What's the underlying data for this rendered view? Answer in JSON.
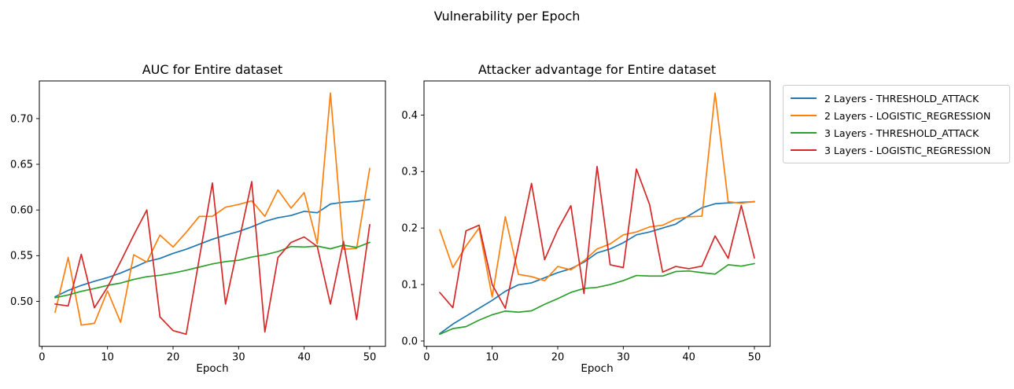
{
  "figure": {
    "suptitle": "Vulnerability per Epoch"
  },
  "legend": {
    "items": [
      {
        "label": "2 Layers - THRESHOLD_ATTACK",
        "color": "#1f77b4"
      },
      {
        "label": "2 Layers - LOGISTIC_REGRESSION",
        "color": "#ff7f0e"
      },
      {
        "label": "3 Layers - THRESHOLD_ATTACK",
        "color": "#2ca02c"
      },
      {
        "label": "3 Layers - LOGISTIC_REGRESSION",
        "color": "#d62728"
      }
    ]
  },
  "chart_data": [
    {
      "id": "auc",
      "type": "line",
      "title": "AUC for Entire dataset",
      "xlabel": "Epoch",
      "legend_position": "outside-right",
      "grid": false,
      "x": [
        2,
        4,
        6,
        8,
        10,
        12,
        14,
        16,
        18,
        20,
        22,
        24,
        26,
        28,
        30,
        32,
        34,
        36,
        38,
        40,
        42,
        44,
        46,
        48,
        50
      ],
      "xlim": [
        -0.4,
        52.4
      ],
      "ylim": [
        0.4508,
        0.7412
      ],
      "xticks": [
        0,
        10,
        20,
        30,
        40,
        50
      ],
      "xtick_labels": [
        "0",
        "10",
        "20",
        "30",
        "40",
        "50"
      ],
      "yticks": [
        0.5,
        0.55,
        0.6,
        0.65,
        0.7
      ],
      "ytick_labels": [
        "0.50",
        "0.55",
        "0.60",
        "0.65",
        "0.70"
      ],
      "series": [
        {
          "name": "2 Layers - THRESHOLD_ATTACK",
          "color": "#1f77b4",
          "values": [
            0.505,
            0.512,
            0.5175,
            0.522,
            0.526,
            0.531,
            0.537,
            0.5435,
            0.547,
            0.5525,
            0.557,
            0.5625,
            0.568,
            0.5725,
            0.5765,
            0.5815,
            0.5875,
            0.5915,
            0.594,
            0.5985,
            0.597,
            0.6065,
            0.6085,
            0.6095,
            0.6115
          ]
        },
        {
          "name": "2 Layers - LOGISTIC_REGRESSION",
          "color": "#ff7f0e",
          "values": [
            0.488,
            0.548,
            0.474,
            0.476,
            0.5115,
            0.477,
            0.551,
            0.543,
            0.5725,
            0.5595,
            0.5755,
            0.593,
            0.593,
            0.603,
            0.606,
            0.61,
            0.593,
            0.622,
            0.602,
            0.619,
            0.563,
            0.728,
            0.557,
            0.558,
            0.6455
          ]
        },
        {
          "name": "3 Layers - THRESHOLD_ATTACK",
          "color": "#2ca02c",
          "values": [
            0.504,
            0.507,
            0.511,
            0.514,
            0.5175,
            0.52,
            0.524,
            0.527,
            0.5285,
            0.531,
            0.534,
            0.5375,
            0.541,
            0.5435,
            0.545,
            0.5485,
            0.551,
            0.5545,
            0.56,
            0.5595,
            0.5605,
            0.5575,
            0.5615,
            0.559,
            0.5645
          ]
        },
        {
          "name": "3 Layers - LOGISTIC_REGRESSION",
          "color": "#d62728",
          "values": [
            0.497,
            0.495,
            0.5515,
            0.493,
            0.5155,
            0.5435,
            0.5725,
            0.6,
            0.483,
            0.468,
            0.464,
            0.547,
            0.6295,
            0.497,
            0.564,
            0.631,
            0.4665,
            0.548,
            0.5645,
            0.5705,
            0.56,
            0.497,
            0.5655,
            0.48,
            0.584
          ]
        }
      ]
    },
    {
      "id": "advantage",
      "type": "line",
      "title": "Attacker advantage for Entire dataset",
      "xlabel": "Epoch",
      "grid": false,
      "x": [
        2,
        4,
        6,
        8,
        10,
        12,
        14,
        16,
        18,
        20,
        22,
        24,
        26,
        28,
        30,
        32,
        34,
        36,
        38,
        40,
        42,
        44,
        46,
        48,
        50
      ],
      "xlim": [
        -0.4,
        52.4
      ],
      "ylim": [
        -0.0094,
        0.4604
      ],
      "xticks": [
        0,
        10,
        20,
        30,
        40,
        50
      ],
      "xtick_labels": [
        "0",
        "10",
        "20",
        "30",
        "40",
        "50"
      ],
      "yticks": [
        0.0,
        0.1,
        0.2,
        0.3,
        0.4
      ],
      "ytick_labels": [
        "0.0",
        "0.1",
        "0.2",
        "0.3",
        "0.4"
      ],
      "series": [
        {
          "name": "2 Layers - THRESHOLD_ATTACK",
          "color": "#1f77b4",
          "values": [
            0.013,
            0.03,
            0.044,
            0.058,
            0.072,
            0.088,
            0.0995,
            0.103,
            0.112,
            0.121,
            0.128,
            0.1395,
            0.156,
            0.163,
            0.174,
            0.188,
            0.193,
            0.2,
            0.207,
            0.222,
            0.236,
            0.243,
            0.2445,
            0.2455,
            0.2465
          ]
        },
        {
          "name": "2 Layers - LOGISTIC_REGRESSION",
          "color": "#ff7f0e",
          "values": [
            0.197,
            0.13,
            0.168,
            0.2,
            0.078,
            0.22,
            0.118,
            0.114,
            0.107,
            0.132,
            0.126,
            0.142,
            0.163,
            0.172,
            0.188,
            0.193,
            0.202,
            0.205,
            0.216,
            0.22,
            0.221,
            0.439,
            0.2465,
            0.244,
            0.247
          ]
        },
        {
          "name": "3 Layers - THRESHOLD_ATTACK",
          "color": "#2ca02c",
          "values": [
            0.012,
            0.022,
            0.0255,
            0.037,
            0.0465,
            0.053,
            0.051,
            0.0535,
            0.065,
            0.075,
            0.086,
            0.093,
            0.095,
            0.1,
            0.107,
            0.116,
            0.115,
            0.115,
            0.123,
            0.124,
            0.121,
            0.1185,
            0.135,
            0.1325,
            0.137
          ]
        },
        {
          "name": "3 Layers - LOGISTIC_REGRESSION",
          "color": "#d62728",
          "values": [
            0.086,
            0.059,
            0.195,
            0.205,
            0.1,
            0.058,
            0.168,
            0.279,
            0.144,
            0.197,
            0.2395,
            0.084,
            0.309,
            0.135,
            0.13,
            0.3045,
            0.242,
            0.122,
            0.132,
            0.128,
            0.1325,
            0.186,
            0.1465,
            0.24,
            0.147
          ]
        }
      ]
    }
  ]
}
